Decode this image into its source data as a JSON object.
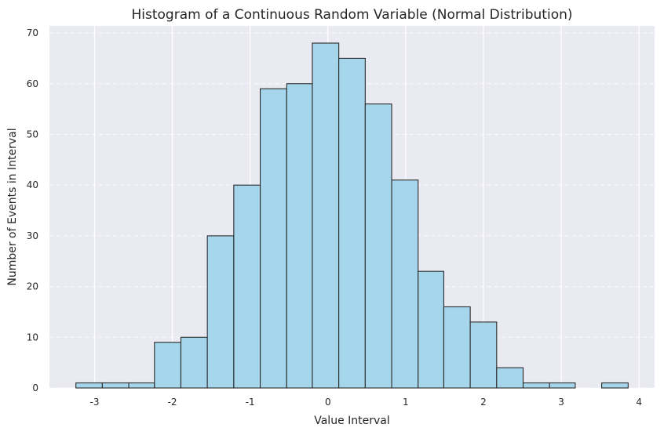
{
  "chart_data": {
    "type": "bar",
    "title": "Histogram of a Continuous Random Variable (Normal Distribution)",
    "xlabel": "Value Interval",
    "ylabel": "Number of Events in Interval",
    "xlim": [
      -3.58,
      4.2
    ],
    "ylim": [
      0,
      71.4
    ],
    "x_ticks": [
      -3,
      -2,
      -1,
      0,
      1,
      2,
      3,
      4
    ],
    "y_ticks": [
      0,
      10,
      20,
      30,
      40,
      50,
      60,
      70
    ],
    "bin_edges": [
      -3.24,
      -2.9,
      -2.56,
      -2.23,
      -1.89,
      -1.55,
      -1.21,
      -0.87,
      -0.53,
      -0.2,
      0.14,
      0.48,
      0.82,
      1.16,
      1.49,
      1.83,
      2.17,
      2.51,
      2.85,
      3.18,
      3.52,
      3.86
    ],
    "values": [
      1,
      1,
      1,
      9,
      10,
      30,
      40,
      59,
      60,
      68,
      65,
      56,
      41,
      23,
      16,
      13,
      4,
      1,
      1,
      0,
      1
    ],
    "grid": true,
    "grid_style": {
      "vertical": "solid",
      "horizontal": "dashed"
    },
    "colors": {
      "plot_background": "#eaeaf2",
      "bar_fill": "#a5d6eb",
      "bar_edge": "#2b2b2b",
      "grid": "#ffffff",
      "text": "#262626"
    }
  }
}
